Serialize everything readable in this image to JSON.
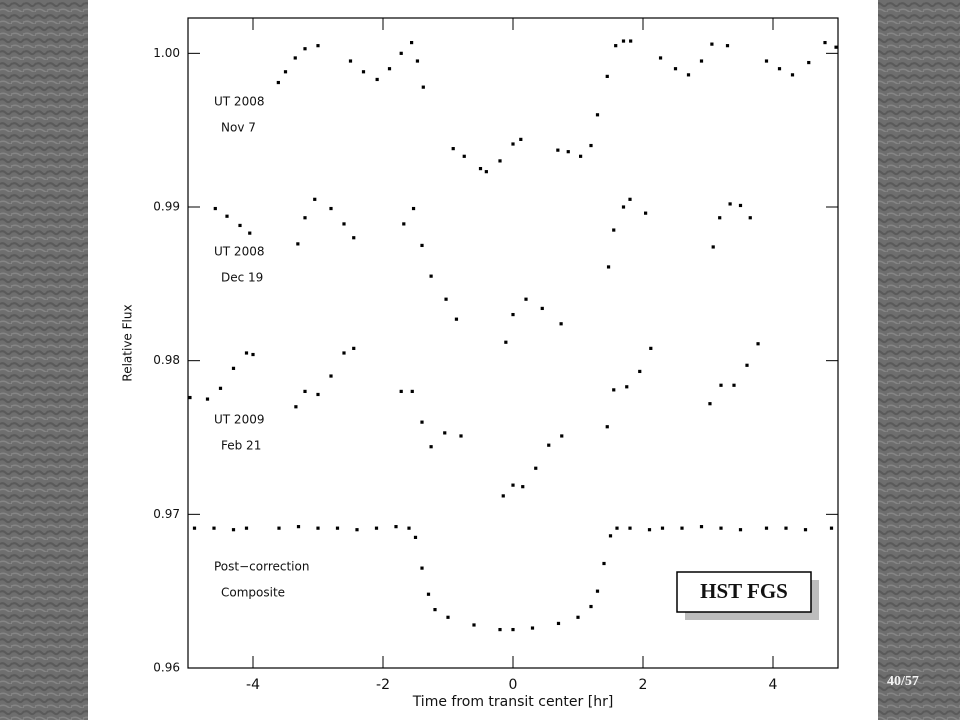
{
  "chart_data": {
    "type": "scatter",
    "xlabel": "Time from transit center [hr]",
    "ylabel": "Relative Flux",
    "xlim": [
      -5,
      5
    ],
    "ylim": [
      0.96,
      1.0023
    ],
    "xticks": [
      -4,
      -2,
      0,
      2,
      4
    ],
    "yticks": [
      0.96,
      0.97,
      0.98,
      0.99,
      {
        "value": 1,
        "label": "1.00"
      }
    ],
    "color": "#000000",
    "series": [
      {
        "label_lines": [
          "UT 2008",
          "Nov  7"
        ],
        "x": [
          -3.61,
          -3.5,
          -3.35,
          -3.2,
          -3.0,
          -2.5,
          -2.3,
          -2.09,
          -1.9,
          -1.72,
          -1.56,
          -1.47,
          -1.38,
          -0.92,
          -0.75,
          -0.5,
          -0.41,
          -0.2,
          0.0,
          0.12,
          0.69,
          0.85,
          1.04,
          1.2,
          1.3,
          1.45,
          1.58,
          1.7,
          1.81,
          2.27,
          2.5,
          2.7,
          2.9,
          3.06,
          3.3,
          3.9,
          4.1,
          4.3,
          4.55,
          4.8,
          4.97
        ],
        "values": [
          0.9981,
          0.9988,
          0.9997,
          1.0003,
          1.0005,
          0.9995,
          0.9988,
          0.9983,
          0.999,
          1.0,
          1.0007,
          0.9995,
          0.9978,
          0.9938,
          0.9933,
          0.9925,
          0.9923,
          0.993,
          0.9941,
          0.9944,
          0.9937,
          0.9936,
          0.9933,
          0.994,
          0.996,
          0.9985,
          1.0005,
          1.0008,
          1.0008,
          0.9997,
          0.999,
          0.9986,
          0.9995,
          1.0006,
          1.0005,
          0.9995,
          0.999,
          0.9986,
          0.9994,
          1.0007,
          1.0004
        ]
      },
      {
        "label_lines": [
          "UT 2008",
          "Dec 19"
        ],
        "x": [
          -4.58,
          -4.4,
          -4.2,
          -4.05,
          -3.31,
          -3.2,
          -3.05,
          -2.8,
          -2.6,
          -2.45,
          -1.68,
          -1.53,
          -1.4,
          -1.26,
          -1.03,
          -0.87,
          -0.11,
          0.0,
          0.2,
          0.45,
          0.74,
          1.47,
          1.55,
          1.7,
          1.8,
          2.04,
          3.08,
          3.18,
          3.34,
          3.5,
          3.65
        ],
        "values": [
          0.9899,
          0.9894,
          0.9888,
          0.9883,
          0.9876,
          0.9893,
          0.9905,
          0.9899,
          0.9889,
          0.988,
          0.9889,
          0.9899,
          0.9875,
          0.9855,
          0.984,
          0.9827,
          0.9812,
          0.983,
          0.984,
          0.9834,
          0.9824,
          0.9861,
          0.9885,
          0.99,
          0.9905,
          0.9896,
          0.9874,
          0.9893,
          0.9902,
          0.9901,
          0.9893
        ]
      },
      {
        "label_lines": [
          "UT 2009",
          "Feb 21"
        ],
        "x": [
          -4.97,
          -4.7,
          -4.5,
          -4.3,
          -4.1,
          -4.0,
          -3.34,
          -3.2,
          -3.0,
          -2.8,
          -2.6,
          -2.45,
          -1.72,
          -1.55,
          -1.4,
          -1.26,
          -1.05,
          -0.8,
          -0.15,
          0.0,
          0.15,
          0.35,
          0.55,
          0.75,
          1.45,
          1.55,
          1.75,
          1.95,
          2.12,
          3.03,
          3.2,
          3.4,
          3.6,
          3.77
        ],
        "values": [
          0.9776,
          0.9775,
          0.9782,
          0.9795,
          0.9805,
          0.9804,
          0.977,
          0.978,
          0.9778,
          0.979,
          0.9805,
          0.9808,
          0.978,
          0.978,
          0.976,
          0.9744,
          0.9753,
          0.9751,
          0.9712,
          0.9719,
          0.9718,
          0.973,
          0.9745,
          0.9751,
          0.9757,
          0.9781,
          0.9783,
          0.9793,
          0.9808,
          0.9772,
          0.9784,
          0.9784,
          0.9797,
          0.9811
        ]
      },
      {
        "label_lines": [
          "Post−correction",
          "Composite"
        ],
        "x": [
          -4.9,
          -4.6,
          -4.3,
          -4.1,
          -3.6,
          -3.3,
          -3.0,
          -2.7,
          -2.4,
          -2.1,
          -1.8,
          -1.6,
          -1.5,
          -1.4,
          -1.3,
          -1.2,
          -1.0,
          -0.6,
          -0.2,
          0.0,
          0.3,
          0.7,
          1.0,
          1.2,
          1.3,
          1.4,
          1.5,
          1.6,
          1.8,
          2.1,
          2.3,
          2.6,
          2.9,
          3.2,
          3.5,
          3.9,
          4.2,
          4.5,
          4.9
        ],
        "values": [
          0.9691,
          0.9691,
          0.969,
          0.9691,
          0.9691,
          0.9692,
          0.9691,
          0.9691,
          0.969,
          0.9691,
          0.9692,
          0.9691,
          0.9685,
          0.9665,
          0.9648,
          0.9638,
          0.9633,
          0.9628,
          0.9625,
          0.9625,
          0.9626,
          0.9629,
          0.9633,
          0.964,
          0.965,
          0.9668,
          0.9686,
          0.9691,
          0.9691,
          0.969,
          0.9691,
          0.9691,
          0.9692,
          0.9691,
          0.969,
          0.9691,
          0.9691,
          0.969,
          0.9691
        ]
      }
    ]
  },
  "slide": {
    "badge": "HST FGS",
    "page_number": "40/57"
  }
}
